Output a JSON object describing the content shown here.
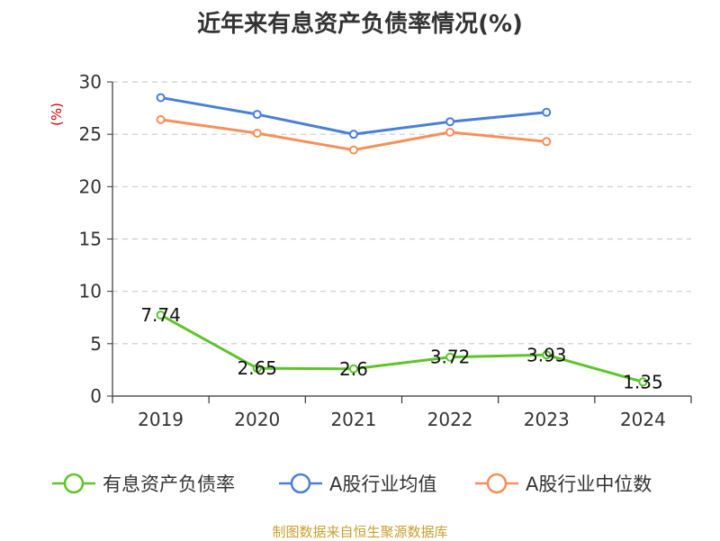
{
  "chart_data": {
    "type": "line",
    "title": "近年来有息资产负债率情况(%)",
    "ylabel": "(%)",
    "categories": [
      "2019",
      "2020",
      "2021",
      "2022",
      "2023",
      "2024"
    ],
    "ylim": [
      0,
      30
    ],
    "yticks": [
      0,
      5,
      10,
      15,
      20,
      25,
      30
    ],
    "grid": true,
    "legend_position": "bottom",
    "series": [
      {
        "name": "有息资产负债率",
        "color": "#5ec42a",
        "values": [
          7.74,
          2.65,
          2.6,
          3.72,
          3.93,
          1.35
        ],
        "show_labels": true
      },
      {
        "name": "A股行业均值",
        "color": "#4a7fd8",
        "values": [
          28.5,
          26.9,
          25.0,
          26.2,
          27.1,
          null
        ],
        "show_labels": false
      },
      {
        "name": "A股行业中位数",
        "color": "#f78f5a",
        "values": [
          26.4,
          25.1,
          23.5,
          25.2,
          24.3,
          null
        ],
        "show_labels": false
      }
    ]
  },
  "source": "制图数据来自恒生聚源数据库"
}
